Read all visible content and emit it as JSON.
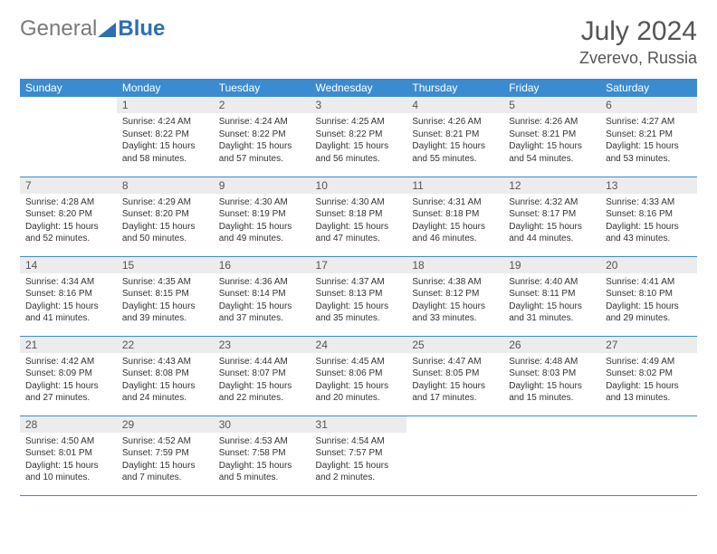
{
  "logo": {
    "text1": "General",
    "text2": "Blue"
  },
  "title": "July 2024",
  "location": "Zverevo, Russia",
  "colors": {
    "header_bg": "#3b8bd0",
    "header_text": "#ffffff",
    "daynum_bg": "#ececec",
    "border": "#3b8bd0",
    "title_color": "#555555"
  },
  "weekdays": [
    "Sunday",
    "Monday",
    "Tuesday",
    "Wednesday",
    "Thursday",
    "Friday",
    "Saturday"
  ],
  "weeks": [
    [
      null,
      {
        "n": "1",
        "sr": "Sunrise: 4:24 AM",
        "ss": "Sunset: 8:22 PM",
        "dl": "Daylight: 15 hours and 58 minutes."
      },
      {
        "n": "2",
        "sr": "Sunrise: 4:24 AM",
        "ss": "Sunset: 8:22 PM",
        "dl": "Daylight: 15 hours and 57 minutes."
      },
      {
        "n": "3",
        "sr": "Sunrise: 4:25 AM",
        "ss": "Sunset: 8:22 PM",
        "dl": "Daylight: 15 hours and 56 minutes."
      },
      {
        "n": "4",
        "sr": "Sunrise: 4:26 AM",
        "ss": "Sunset: 8:21 PM",
        "dl": "Daylight: 15 hours and 55 minutes."
      },
      {
        "n": "5",
        "sr": "Sunrise: 4:26 AM",
        "ss": "Sunset: 8:21 PM",
        "dl": "Daylight: 15 hours and 54 minutes."
      },
      {
        "n": "6",
        "sr": "Sunrise: 4:27 AM",
        "ss": "Sunset: 8:21 PM",
        "dl": "Daylight: 15 hours and 53 minutes."
      }
    ],
    [
      {
        "n": "7",
        "sr": "Sunrise: 4:28 AM",
        "ss": "Sunset: 8:20 PM",
        "dl": "Daylight: 15 hours and 52 minutes."
      },
      {
        "n": "8",
        "sr": "Sunrise: 4:29 AM",
        "ss": "Sunset: 8:20 PM",
        "dl": "Daylight: 15 hours and 50 minutes."
      },
      {
        "n": "9",
        "sr": "Sunrise: 4:30 AM",
        "ss": "Sunset: 8:19 PM",
        "dl": "Daylight: 15 hours and 49 minutes."
      },
      {
        "n": "10",
        "sr": "Sunrise: 4:30 AM",
        "ss": "Sunset: 8:18 PM",
        "dl": "Daylight: 15 hours and 47 minutes."
      },
      {
        "n": "11",
        "sr": "Sunrise: 4:31 AM",
        "ss": "Sunset: 8:18 PM",
        "dl": "Daylight: 15 hours and 46 minutes."
      },
      {
        "n": "12",
        "sr": "Sunrise: 4:32 AM",
        "ss": "Sunset: 8:17 PM",
        "dl": "Daylight: 15 hours and 44 minutes."
      },
      {
        "n": "13",
        "sr": "Sunrise: 4:33 AM",
        "ss": "Sunset: 8:16 PM",
        "dl": "Daylight: 15 hours and 43 minutes."
      }
    ],
    [
      {
        "n": "14",
        "sr": "Sunrise: 4:34 AM",
        "ss": "Sunset: 8:16 PM",
        "dl": "Daylight: 15 hours and 41 minutes."
      },
      {
        "n": "15",
        "sr": "Sunrise: 4:35 AM",
        "ss": "Sunset: 8:15 PM",
        "dl": "Daylight: 15 hours and 39 minutes."
      },
      {
        "n": "16",
        "sr": "Sunrise: 4:36 AM",
        "ss": "Sunset: 8:14 PM",
        "dl": "Daylight: 15 hours and 37 minutes."
      },
      {
        "n": "17",
        "sr": "Sunrise: 4:37 AM",
        "ss": "Sunset: 8:13 PM",
        "dl": "Daylight: 15 hours and 35 minutes."
      },
      {
        "n": "18",
        "sr": "Sunrise: 4:38 AM",
        "ss": "Sunset: 8:12 PM",
        "dl": "Daylight: 15 hours and 33 minutes."
      },
      {
        "n": "19",
        "sr": "Sunrise: 4:40 AM",
        "ss": "Sunset: 8:11 PM",
        "dl": "Daylight: 15 hours and 31 minutes."
      },
      {
        "n": "20",
        "sr": "Sunrise: 4:41 AM",
        "ss": "Sunset: 8:10 PM",
        "dl": "Daylight: 15 hours and 29 minutes."
      }
    ],
    [
      {
        "n": "21",
        "sr": "Sunrise: 4:42 AM",
        "ss": "Sunset: 8:09 PM",
        "dl": "Daylight: 15 hours and 27 minutes."
      },
      {
        "n": "22",
        "sr": "Sunrise: 4:43 AM",
        "ss": "Sunset: 8:08 PM",
        "dl": "Daylight: 15 hours and 24 minutes."
      },
      {
        "n": "23",
        "sr": "Sunrise: 4:44 AM",
        "ss": "Sunset: 8:07 PM",
        "dl": "Daylight: 15 hours and 22 minutes."
      },
      {
        "n": "24",
        "sr": "Sunrise: 4:45 AM",
        "ss": "Sunset: 8:06 PM",
        "dl": "Daylight: 15 hours and 20 minutes."
      },
      {
        "n": "25",
        "sr": "Sunrise: 4:47 AM",
        "ss": "Sunset: 8:05 PM",
        "dl": "Daylight: 15 hours and 17 minutes."
      },
      {
        "n": "26",
        "sr": "Sunrise: 4:48 AM",
        "ss": "Sunset: 8:03 PM",
        "dl": "Daylight: 15 hours and 15 minutes."
      },
      {
        "n": "27",
        "sr": "Sunrise: 4:49 AM",
        "ss": "Sunset: 8:02 PM",
        "dl": "Daylight: 15 hours and 13 minutes."
      }
    ],
    [
      {
        "n": "28",
        "sr": "Sunrise: 4:50 AM",
        "ss": "Sunset: 8:01 PM",
        "dl": "Daylight: 15 hours and 10 minutes."
      },
      {
        "n": "29",
        "sr": "Sunrise: 4:52 AM",
        "ss": "Sunset: 7:59 PM",
        "dl": "Daylight: 15 hours and 7 minutes."
      },
      {
        "n": "30",
        "sr": "Sunrise: 4:53 AM",
        "ss": "Sunset: 7:58 PM",
        "dl": "Daylight: 15 hours and 5 minutes."
      },
      {
        "n": "31",
        "sr": "Sunrise: 4:54 AM",
        "ss": "Sunset: 7:57 PM",
        "dl": "Daylight: 15 hours and 2 minutes."
      },
      null,
      null,
      null
    ]
  ]
}
